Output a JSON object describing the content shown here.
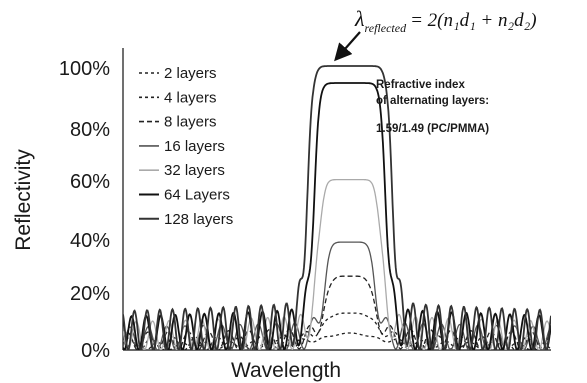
{
  "chart_data": {
    "type": "line",
    "xlabel": "Wavelength",
    "ylabel": "Reflectivity",
    "yticks": [
      "100%",
      "80%",
      "60%",
      "40%",
      "20%",
      "0%"
    ],
    "ytick_values": [
      100,
      80,
      60,
      40,
      20,
      0
    ],
    "ylim": [
      0,
      100
    ],
    "xlim": [
      0,
      1
    ],
    "grid": false,
    "legend_position": "top-left",
    "series": [
      {
        "name": "2 layers",
        "style": "dotted",
        "color": "#222222",
        "peak": 6,
        "band": 0.08
      },
      {
        "name": "4 layers",
        "style": "dotted",
        "color": "#222222",
        "peak": 13,
        "band": 0.07
      },
      {
        "name": "8 layers",
        "style": "dashed",
        "color": "#222222",
        "peak": 26,
        "band": 0.06
      },
      {
        "name": "16 layers",
        "style": "solid",
        "color": "#555555",
        "peak": 38,
        "band": 0.06
      },
      {
        "name": "32 layers",
        "style": "solid",
        "color": "#aaaaaa",
        "peak": 60,
        "band": 0.075
      },
      {
        "name": "64 Layers",
        "style": "solid",
        "color": "#111111",
        "peak": 94,
        "band": 0.085
      },
      {
        "name": "128 layers",
        "style": "solid",
        "color": "#333333",
        "peak": 100,
        "band": 0.1
      }
    ],
    "annotations": {
      "note_line1": "Refractive index",
      "note_line2": "of alternating layers:",
      "note_line3": "1.59/1.49 (PC/PMMA)",
      "formula_lambda": "λ",
      "formula_sub": "reflected",
      "formula_rhs": "= 2(n₁d₁ + n₂d₂)"
    }
  }
}
